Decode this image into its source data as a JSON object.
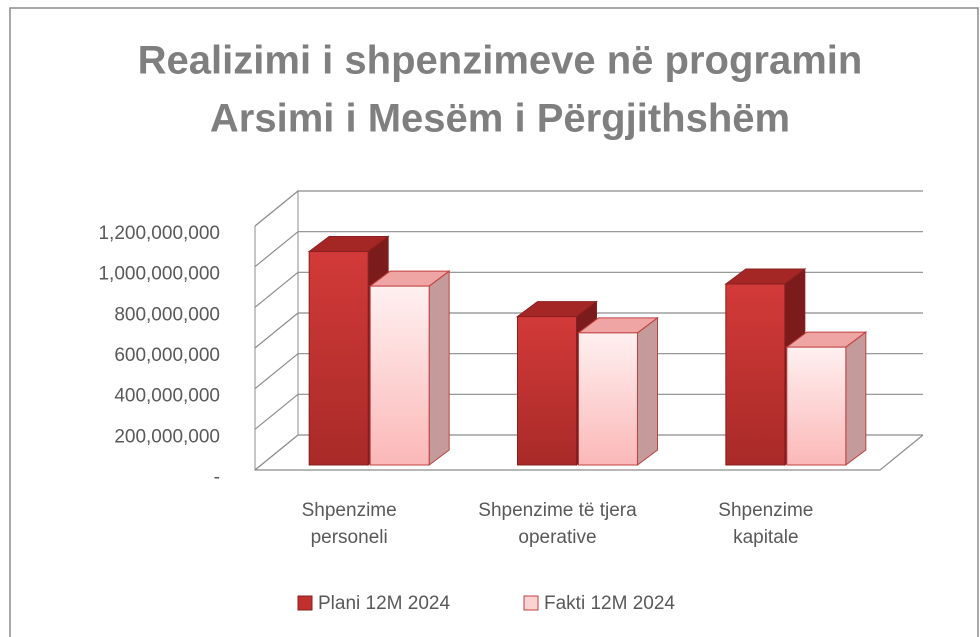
{
  "chart_data": {
    "type": "bar3d",
    "title": [
      "Realizimi i shpenzimeve në programin",
      "Arsimi i Mesëm i Përgjithshëm"
    ],
    "categories": [
      "Shpenzime personeli",
      "Shpenzime të tjera operative",
      "Shpenzime kapitale"
    ],
    "series": [
      {
        "name": "Plani 12M 2024",
        "color": "#c0302f",
        "values": [
          1050000000,
          730000000,
          890000000
        ]
      },
      {
        "name": "Fakti 12M 2024",
        "color": "#fcd3d3",
        "values": [
          880000000,
          650000000,
          580000000
        ]
      }
    ],
    "ylim": [
      0,
      1200000000
    ],
    "yticks": [
      {
        "value": 0,
        "label": "-"
      },
      {
        "value": 200000000,
        "label": "200,000,000"
      },
      {
        "value": 400000000,
        "label": "400,000,000"
      },
      {
        "value": 600000000,
        "label": "600,000,000"
      },
      {
        "value": 800000000,
        "label": "800,000,000"
      },
      {
        "value": 1000000000,
        "label": "1,000,000,000"
      },
      {
        "value": 1200000000,
        "label": "1,200,000,000"
      }
    ],
    "grid": true,
    "legend": "bottom"
  }
}
